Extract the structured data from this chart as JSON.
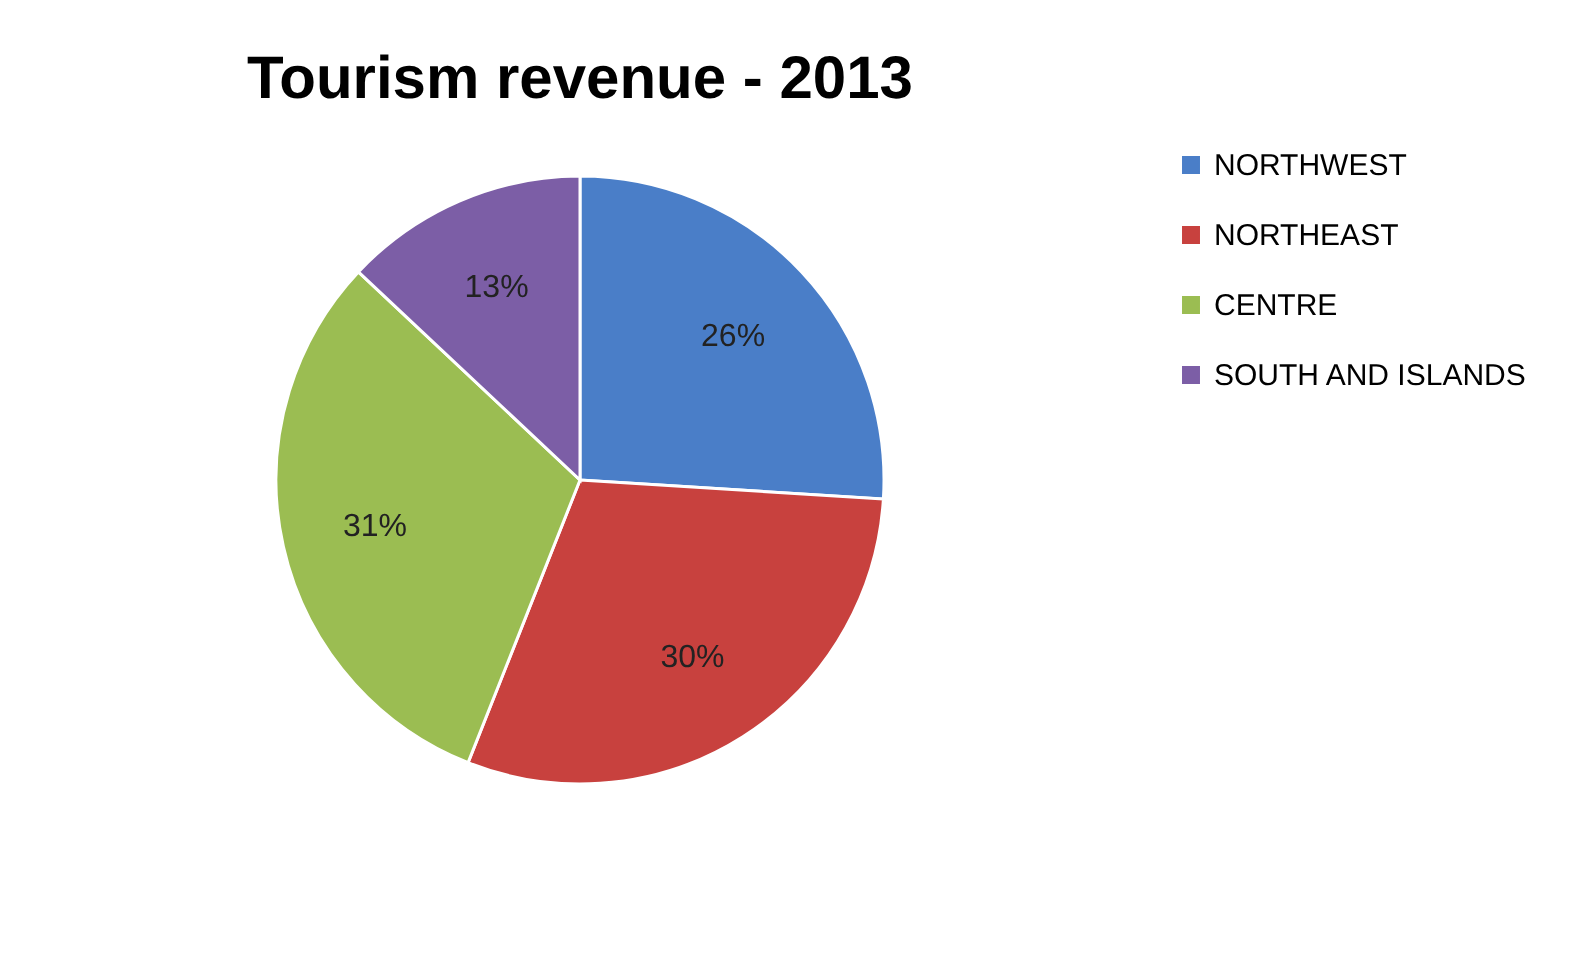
{
  "chart_data": {
    "type": "pie",
    "title": "Tourism revenue - 2013",
    "categories": [
      "NORTHWEST",
      "NORTHEAST",
      "CENTRE",
      "SOUTH AND ISLANDS"
    ],
    "values": [
      26,
      30,
      31,
      13
    ],
    "value_labels": [
      "26%",
      "30%",
      "31%",
      "13%"
    ],
    "colors": [
      "#4a7ec8",
      "#c8413e",
      "#9bbd52",
      "#7c5ea6"
    ],
    "legend": "right"
  }
}
